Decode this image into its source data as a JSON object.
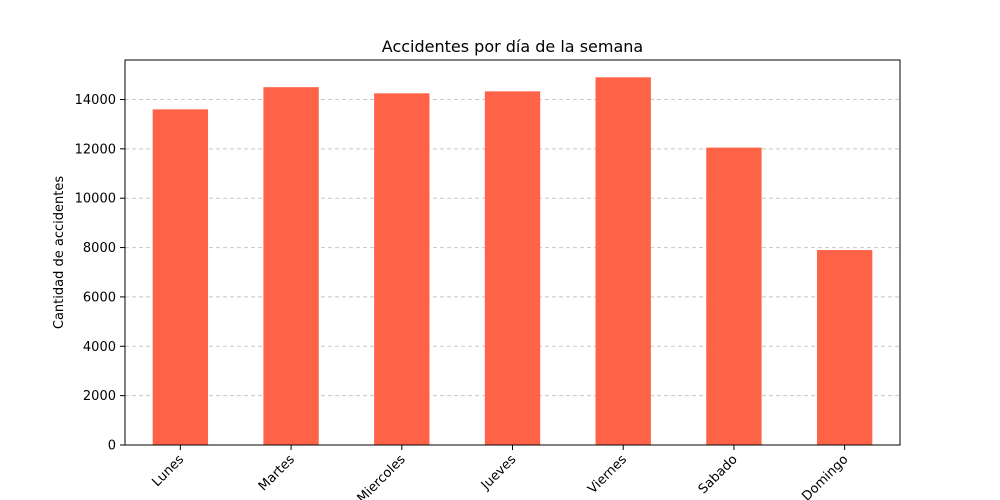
{
  "chart_data": {
    "type": "bar",
    "title": "Accidentes por día de la semana",
    "xlabel": "",
    "ylabel": "Cantidad de accidentes",
    "categories": [
      "Lunes",
      "Martes",
      "Miercoles",
      "Jueves",
      "Viernes",
      "Sabado",
      "Domingo"
    ],
    "values": [
      13600,
      14500,
      14250,
      14330,
      14900,
      12050,
      7900
    ],
    "ylim": [
      0,
      15600
    ],
    "yticks": [
      0,
      2000,
      4000,
      6000,
      8000,
      10000,
      12000,
      14000
    ],
    "ytick_labels": [
      "0",
      "2000",
      "4000",
      "6000",
      "8000",
      "10000",
      "12000",
      "14000"
    ],
    "bar_color": "#ff6347",
    "grid": {
      "axis": "y",
      "style": "dashed",
      "color": "#c8c8c8"
    },
    "xtick_rotation": 45
  }
}
